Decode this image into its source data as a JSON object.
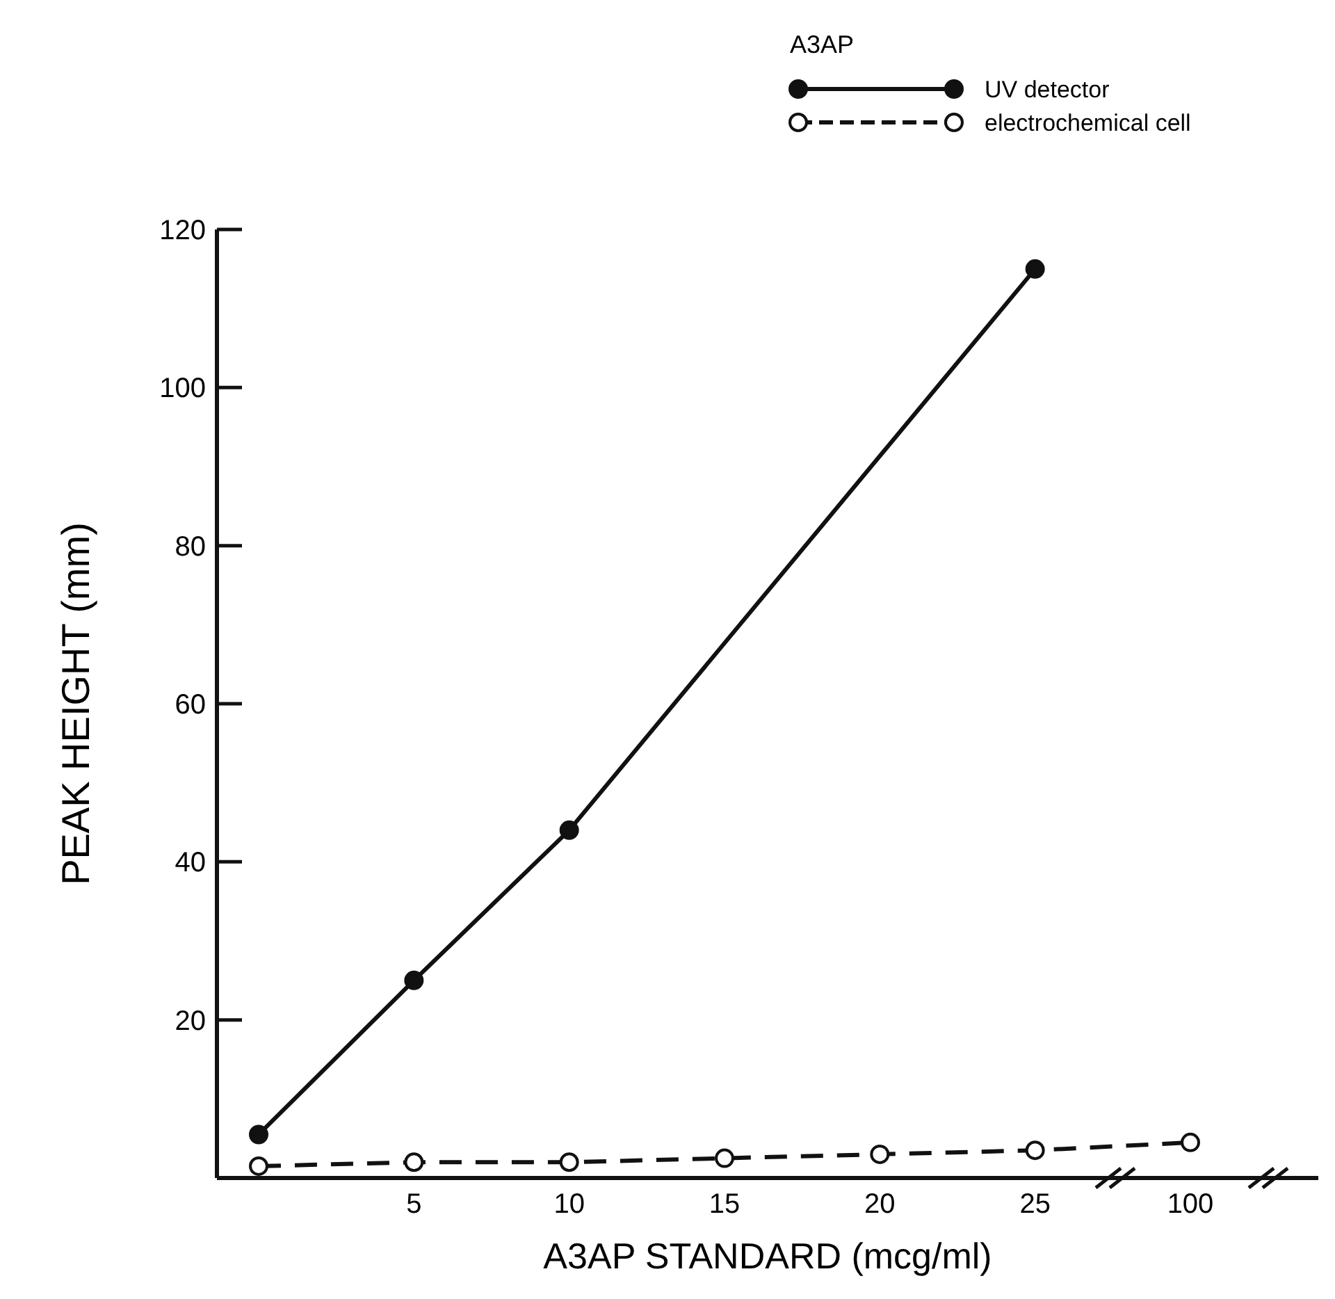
{
  "chart_data": {
    "type": "line",
    "xlabel": "A3AP STANDARD (mcg/ml)",
    "ylabel": "PEAK HEIGHT (mm)",
    "legend_title": "A3AP",
    "legend": "top right",
    "marker": "circle",
    "categories": [
      null,
      "5",
      "10",
      "15",
      "20",
      "25",
      "100"
    ],
    "series": [
      {
        "name": "UV detector",
        "color": "#111111",
        "line_style": "solid",
        "values": [
          5.5,
          25,
          44,
          null,
          null,
          115,
          null
        ]
      },
      {
        "name": "electrochemical cell",
        "color": "#111111",
        "line_style": "dashed",
        "values": [
          1.5,
          2,
          2,
          2.5,
          3,
          3.5,
          4.5
        ]
      }
    ],
    "ylim": [
      0,
      120
    ],
    "yticks": [
      20,
      40,
      60,
      80,
      100,
      120
    ]
  }
}
